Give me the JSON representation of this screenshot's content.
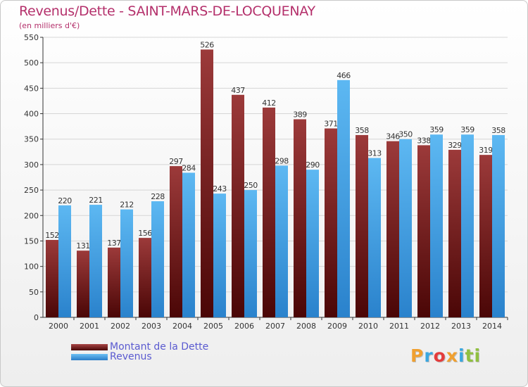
{
  "chart_data": {
    "type": "bar",
    "title": "Revenus/Dette - SAINT-MARS-DE-LOCQUENAY",
    "subtitle": "(en milliers d'€)",
    "categories": [
      "2000",
      "2001",
      "2002",
      "2003",
      "2004",
      "2005",
      "2006",
      "2007",
      "2008",
      "2009",
      "2010",
      "2011",
      "2012",
      "2013",
      "2014"
    ],
    "series": [
      {
        "name": "Montant de la Dette",
        "color": "#7a1e1e",
        "values": [
          152,
          131,
          137,
          156,
          297,
          526,
          437,
          412,
          389,
          371,
          358,
          346,
          338,
          329,
          319
        ],
        "labels": [
          "152",
          "131",
          "137",
          "156",
          "297",
          "526",
          "437",
          "412",
          "389",
          "371",
          "358",
          "346",
          "338",
          "329",
          "319"
        ]
      },
      {
        "name": "Revenus",
        "color": "#3a9ee4",
        "values": [
          220,
          221,
          212,
          228,
          284,
          243,
          250,
          298,
          290,
          466,
          313,
          350,
          359,
          359,
          358
        ],
        "labels": [
          "220",
          "221",
          "212",
          "228",
          "284",
          "243",
          "250",
          "298",
          "290",
          "466",
          "313",
          "350",
          "359",
          "359",
          "358"
        ]
      }
    ],
    "ylim": [
      0,
      550
    ],
    "yticks": [
      "0",
      "50",
      "100",
      "150",
      "200",
      "250",
      "300",
      "350",
      "400",
      "450",
      "500",
      "550"
    ],
    "grid": true,
    "legend_position": "bottom-left"
  },
  "brand": {
    "text": "Proxiti",
    "letters": [
      "P",
      "r",
      "o",
      "x",
      "i",
      "t",
      "i"
    ],
    "colors": [
      "#f0a030",
      "#3aa7e0",
      "#e43c3c",
      "#f0a030",
      "#3aa7e0",
      "#90c040",
      "#90c040"
    ]
  }
}
